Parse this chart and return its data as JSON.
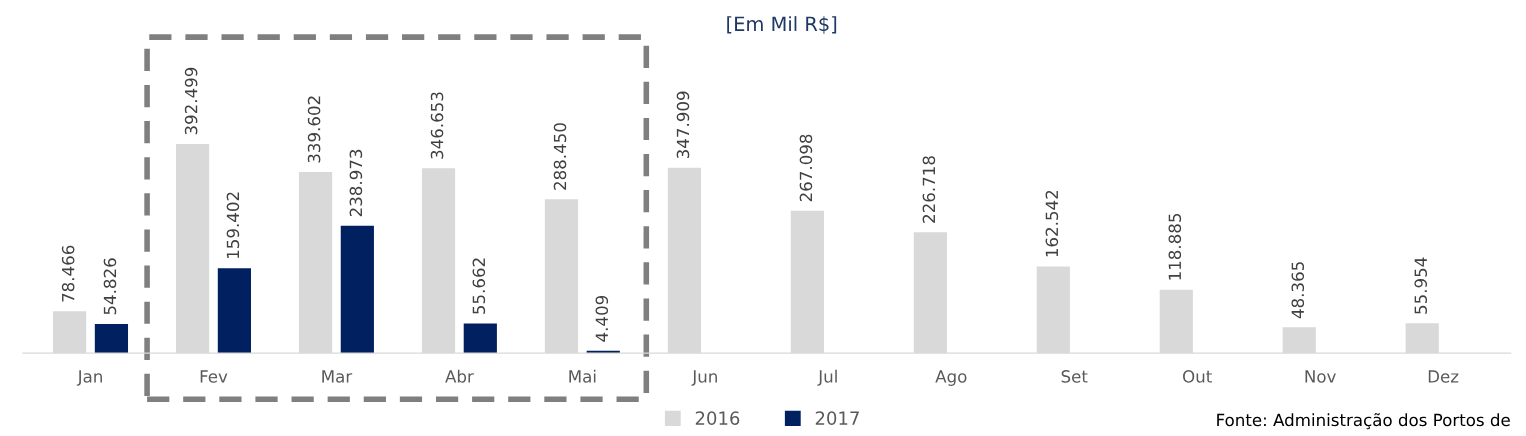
{
  "chart_data": {
    "type": "bar",
    "title": "[Em Mil R$]",
    "categories": [
      "Jan",
      "Fev",
      "Mar",
      "Abr",
      "Mai",
      "Jun",
      "Jul",
      "Ago",
      "Set",
      "Out",
      "Nov",
      "Dez"
    ],
    "series": [
      {
        "name": "2016",
        "color": "#d9d9d9",
        "values": [
          78466,
          392499,
          339602,
          346653,
          288450,
          347909,
          267098,
          226718,
          162542,
          118885,
          48365,
          55954
        ],
        "value_labels": [
          "78.466",
          "392.499",
          "339.602",
          "346.653",
          "288.450",
          "347.909",
          "267.098",
          "226.718",
          "162.542",
          "118.885",
          "48.365",
          "55.954"
        ]
      },
      {
        "name": "2017",
        "color": "#002060",
        "values": [
          54826,
          159402,
          238973,
          55662,
          4409,
          null,
          null,
          null,
          null,
          null,
          null,
          null
        ],
        "value_labels": [
          "54.826",
          "159.402",
          "238.973",
          "55.662",
          "4.409",
          null,
          null,
          null,
          null,
          null,
          null,
          null
        ]
      }
    ],
    "legend": "bottom",
    "grid": false,
    "annotations": [
      "Fonte: Administração dos Portos de"
    ]
  }
}
